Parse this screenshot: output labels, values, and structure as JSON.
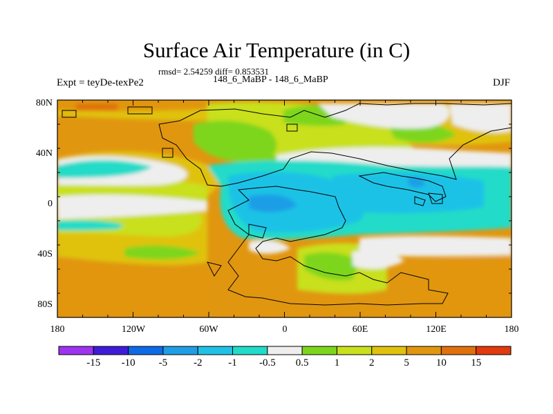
{
  "title": "Surface Air Temperature (in C)",
  "stats": "rmsd= 2.54259 diff= 0.853531",
  "subtitle": "148_6_MaBP - 148_6_MaBP",
  "left_label": "Expt = teyDe-texPe2",
  "right_label": "DJF",
  "lat_labels": [
    "80N",
    "40N",
    "0",
    "40S",
    "80S"
  ],
  "lon_labels": [
    "180",
    "120W",
    "60W",
    "0",
    "60E",
    "120E",
    "180"
  ],
  "colorbar": {
    "labels": [
      "-15",
      "-10",
      "-5",
      "-2",
      "-1",
      "-0.5",
      "0.5",
      "1",
      "2",
      "5",
      "10",
      "15"
    ],
    "colors": [
      "#9d33f0",
      "#3f1cd8",
      "#0e6ae6",
      "#1f9ee6",
      "#1fc2e6",
      "#20dbc8",
      "#eeeeee",
      "#7ed61c",
      "#c9e01d",
      "#e0c20e",
      "#e19610",
      "#e0700e",
      "#e03a0e"
    ]
  },
  "chart_data": {
    "type": "heatmap",
    "title": "Surface Air Temperature (in C)",
    "variable": "Surface Air Temperature difference",
    "units": "C",
    "season": "DJF",
    "experiment": "teyDe-texPe2",
    "rmsd": 2.54259,
    "diff": 0.853531,
    "xlim": [
      -180,
      180
    ],
    "ylim": [
      -90,
      90
    ],
    "contour_levels": [
      -15,
      -10,
      -5,
      -2,
      -1,
      -0.5,
      0.5,
      1,
      2,
      5,
      10,
      15
    ]
  }
}
